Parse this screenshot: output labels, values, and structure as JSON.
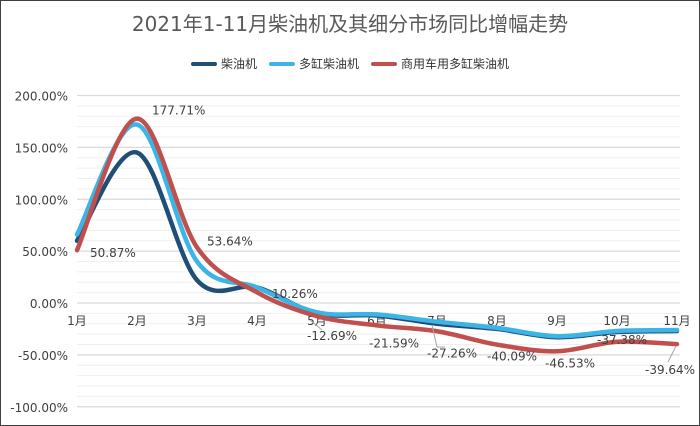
{
  "chart_data": {
    "type": "line",
    "title": "2021年1-11月柴油机及其细分市场同比增幅走势",
    "xlabel": "",
    "ylabel": "",
    "categories": [
      "1月",
      "2月",
      "3月",
      "4月",
      "5月",
      "6月",
      "7月",
      "8月",
      "9月",
      "10月",
      "11月"
    ],
    "ylim": [
      -100,
      200
    ],
    "yticks": [
      "200.00%",
      "150.00%",
      "100.00%",
      "50.00%",
      "0.00%",
      "-50.00%",
      "-100.00%"
    ],
    "ytick_values": [
      200,
      150,
      100,
      50,
      0,
      -50,
      -100
    ],
    "grid": true,
    "smooth": true,
    "legend_position": "top",
    "series": [
      {
        "name": "柴油机",
        "color": "#1f4e79",
        "values": [
          60,
          145,
          22,
          15,
          -10,
          -12,
          -20,
          -25,
          -33,
          -28,
          -27
        ]
      },
      {
        "name": "多缸柴油机",
        "color": "#3cb4e5",
        "values": [
          66,
          172,
          40,
          15,
          -9,
          -11,
          -18,
          -24,
          -32,
          -27,
          -26
        ]
      },
      {
        "name": "商用车用多缸柴油机",
        "color": "#c0504d",
        "values": [
          50.87,
          177.71,
          53.64,
          10.26,
          -12.69,
          -21.59,
          -27.26,
          -40.09,
          -46.53,
          -37.38,
          -39.64
        ]
      }
    ],
    "data_labels": [
      "50.87%",
      "177.71%",
      "53.64%",
      "10.26%",
      "-12.69%",
      "-21.59%",
      "-27.26%",
      "-40.09%",
      "-46.53%",
      "-37.38%",
      "-39.64%"
    ]
  }
}
